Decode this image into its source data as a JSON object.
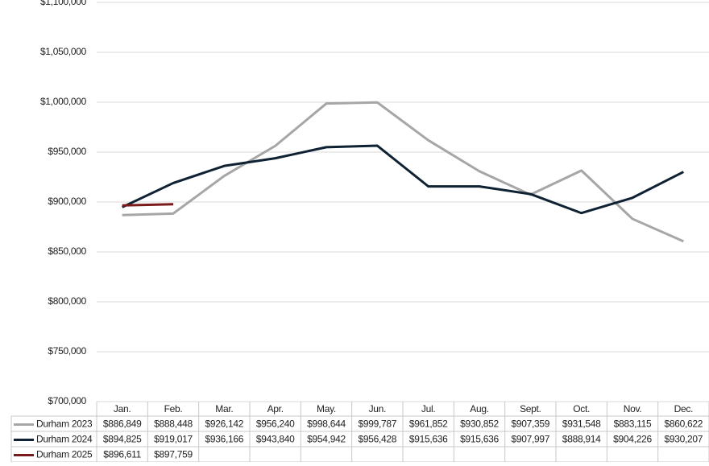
{
  "chart_data": {
    "type": "line",
    "categories": [
      "Jan.",
      "Feb.",
      "Mar.",
      "Apr.",
      "May.",
      "Jun.",
      "Jul.",
      "Aug.",
      "Sept.",
      "Oct.",
      "Nov.",
      "Dec."
    ],
    "series": [
      {
        "name": "Durham 2023",
        "color": "#a6a6a6",
        "values": [
          886849,
          888448,
          926142,
          956240,
          998644,
          999787,
          961852,
          930852,
          907359,
          931548,
          883115,
          860622
        ],
        "value_labels": [
          "$886,849",
          "$888,448",
          "$926,142",
          "$956,240",
          "$998,644",
          "$999,787",
          "$961,852",
          "$930,852",
          "$907,359",
          "$931,548",
          "$883,115",
          "$860,622"
        ]
      },
      {
        "name": "Durham 2024",
        "color": "#0f2233",
        "values": [
          894825,
          919017,
          936166,
          943840,
          954942,
          956428,
          915636,
          915636,
          907997,
          888914,
          904226,
          930207
        ],
        "value_labels": [
          "$894,825",
          "$919,017",
          "$936,166",
          "$943,840",
          "$954,942",
          "$956,428",
          "$915,636",
          "$915,636",
          "$907,997",
          "$888,914",
          "$904,226",
          "$930,207"
        ]
      },
      {
        "name": "Durham 2025",
        "color": "#7b1a1a",
        "values": [
          896611,
          897759,
          null,
          null,
          null,
          null,
          null,
          null,
          null,
          null,
          null,
          null
        ],
        "value_labels": [
          "$896,611",
          "$897,759",
          null,
          null,
          null,
          null,
          null,
          null,
          null,
          null,
          null,
          null
        ]
      }
    ],
    "ylim": [
      700000,
      1100000
    ],
    "yticks": [
      {
        "value": 700000,
        "label": "$700,000"
      },
      {
        "value": 750000,
        "label": "$750,000"
      },
      {
        "value": 800000,
        "label": "$800,000"
      },
      {
        "value": 850000,
        "label": "$850,000"
      },
      {
        "value": 900000,
        "label": "$900,000"
      },
      {
        "value": 950000,
        "label": "$950,000"
      },
      {
        "value": 1000000,
        "label": "$1,000,000"
      },
      {
        "value": 1050000,
        "label": "$1,050,000"
      },
      {
        "value": 1100000,
        "label": "$1,100,000"
      }
    ],
    "grid": true
  }
}
